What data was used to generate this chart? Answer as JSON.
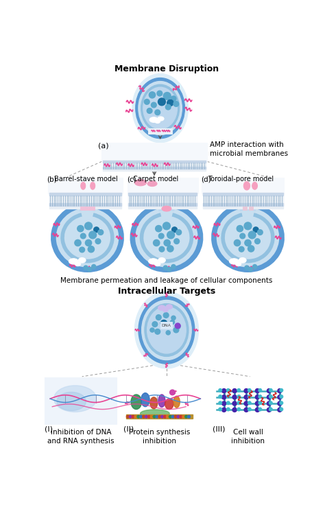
{
  "title_membrane": "Membrane Disruption",
  "title_intracellular": "Intracellular Targets",
  "label_a": "(a)",
  "label_b": "(b)",
  "label_c": "(c)",
  "label_d": "(d)",
  "label_I": "(I)",
  "label_II": "(II)",
  "label_III": "(III)",
  "model_b": "Barrel-stave model",
  "model_c": "Carpet model",
  "model_d": "Toroidal-pore model",
  "caption_amp": "AMP interaction with\nmicrobial membranes",
  "caption_membrane": "Membrane permeation and leakage of cellular components",
  "caption_I": "Inhibition of DNA\nand RNA synthesis",
  "caption_II": "Protein synthesis\ninhibition",
  "caption_III": "Cell wall\ninhibition",
  "bg_color": "#ffffff",
  "blue_outer": "#5b9bd5",
  "blue_mid": "#92c1e0",
  "blue_light": "#bdd7ee",
  "blue_dark": "#1f6fa8",
  "blue_dot_light": "#5ba8cc",
  "pink_amp": "#e84393",
  "pink_light": "#f5b8d4",
  "purple_ring": "#7030a0",
  "gray_box": "#b0b8c8",
  "membrane_top": "#c5d5e8",
  "membrane_mid": "#dce8f0",
  "dashed_color": "#999999",
  "arrow_color": "#555555"
}
